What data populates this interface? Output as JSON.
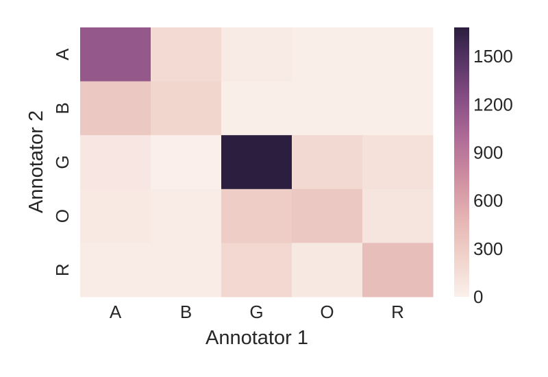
{
  "chart_data": {
    "type": "heatmap",
    "xlabel": "Annotator 1",
    "ylabel": "Annotator 2",
    "x_categories": [
      "A",
      "B",
      "G",
      "O",
      "R"
    ],
    "y_categories": [
      "A",
      "B",
      "G",
      "O",
      "R"
    ],
    "values": [
      [
        1150,
        180,
        40,
        20,
        20
      ],
      [
        330,
        220,
        20,
        20,
        20
      ],
      [
        80,
        10,
        1680,
        190,
        130
      ],
      [
        60,
        30,
        290,
        330,
        100
      ],
      [
        30,
        30,
        200,
        70,
        410
      ]
    ],
    "colorbar": {
      "min": 0,
      "max": 1680,
      "ticks": [
        0,
        300,
        600,
        900,
        1200,
        1500
      ],
      "tick_labels": [
        "0",
        "300",
        "600",
        "900",
        "1200",
        "1500"
      ]
    },
    "colors": {
      "low": "#faefe9",
      "high": "#2c1e3e",
      "text": "#262626"
    }
  }
}
